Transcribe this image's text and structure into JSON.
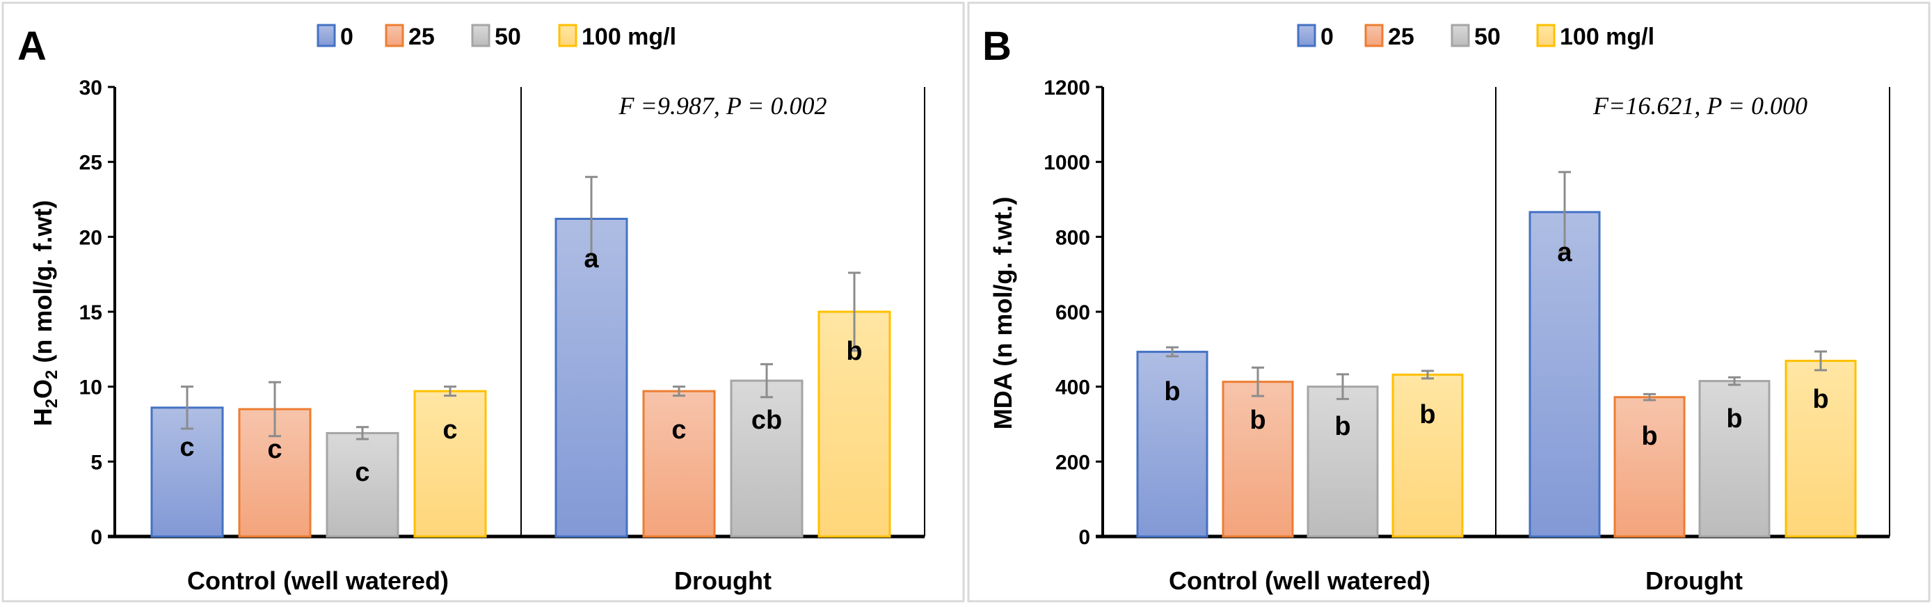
{
  "colors": {
    "series_fill_top": [
      "#aebde3",
      "#f6c4ab",
      "#d9d9d9",
      "#ffe6a3"
    ],
    "series_fill_bottom": [
      "#8299d6",
      "#f4a47c",
      "#bcbcbc",
      "#ffd67a"
    ],
    "series_stroke": [
      "#4472c4",
      "#ed7d31",
      "#a5a5a5",
      "#ffc000"
    ],
    "error_bar": "#8c8c8c",
    "panel_border": "#d9d9d9"
  },
  "chart_data": [
    {
      "type": "bar",
      "panel_label": "A",
      "title": "",
      "legend": [
        "0",
        "25",
        "50",
        "100 mg/l"
      ],
      "legend_position": "top-center",
      "categories": [
        "Control (well watered)",
        "Drought"
      ],
      "xlabel": "",
      "ylabel_parts": {
        "main1": "H",
        "sub1": "2",
        "main2": "O",
        "sub2": "2",
        "rest": " (n mol/g. f.wt)"
      },
      "ylim": [
        0,
        30
      ],
      "yticks": [
        "0",
        "5",
        "10",
        "15",
        "20",
        "25",
        "30"
      ],
      "annotation": "F =9.987, P = 0.002",
      "series": [
        {
          "name": "0",
          "values": [
            8.6,
            21.2
          ],
          "errors": [
            1.4,
            2.8
          ],
          "letters": [
            "c",
            "a"
          ]
        },
        {
          "name": "25",
          "values": [
            8.5,
            9.7
          ],
          "errors": [
            1.8,
            0.3
          ],
          "letters": [
            "c",
            "c"
          ]
        },
        {
          "name": "50",
          "values": [
            6.9,
            10.4
          ],
          "errors": [
            0.4,
            1.1
          ],
          "letters": [
            "c",
            "cb"
          ]
        },
        {
          "name": "100 mg/l",
          "values": [
            9.7,
            15.0
          ],
          "errors": [
            0.3,
            2.6
          ],
          "letters": [
            "c",
            "b"
          ]
        }
      ]
    },
    {
      "type": "bar",
      "panel_label": "B",
      "title": "",
      "legend": [
        "0",
        "25",
        "50",
        "100 mg/l"
      ],
      "legend_position": "top-center",
      "categories": [
        "Control (well watered)",
        "Drought"
      ],
      "xlabel": "",
      "ylabel_parts": {
        "main1": "MDA (n mol/g. f.wt.)",
        "sub1": "",
        "main2": "",
        "sub2": "",
        "rest": ""
      },
      "ylim": [
        0,
        1200
      ],
      "yticks": [
        "0",
        "200",
        "400",
        "600",
        "800",
        "1000",
        "1200"
      ],
      "annotation": "F=16.621, P = 0.000",
      "series": [
        {
          "name": "0",
          "values": [
            493,
            866
          ],
          "errors": [
            12,
            107
          ],
          "letters": [
            "b",
            "a"
          ]
        },
        {
          "name": "25",
          "values": [
            413,
            372
          ],
          "errors": [
            38,
            8
          ],
          "letters": [
            "b",
            "b"
          ]
        },
        {
          "name": "50",
          "values": [
            400,
            415
          ],
          "errors": [
            33,
            10
          ],
          "letters": [
            "b",
            "b"
          ]
        },
        {
          "name": "100 mg/l",
          "values": [
            432,
            469
          ],
          "errors": [
            10,
            25
          ],
          "letters": [
            "b",
            "b"
          ]
        }
      ]
    }
  ]
}
